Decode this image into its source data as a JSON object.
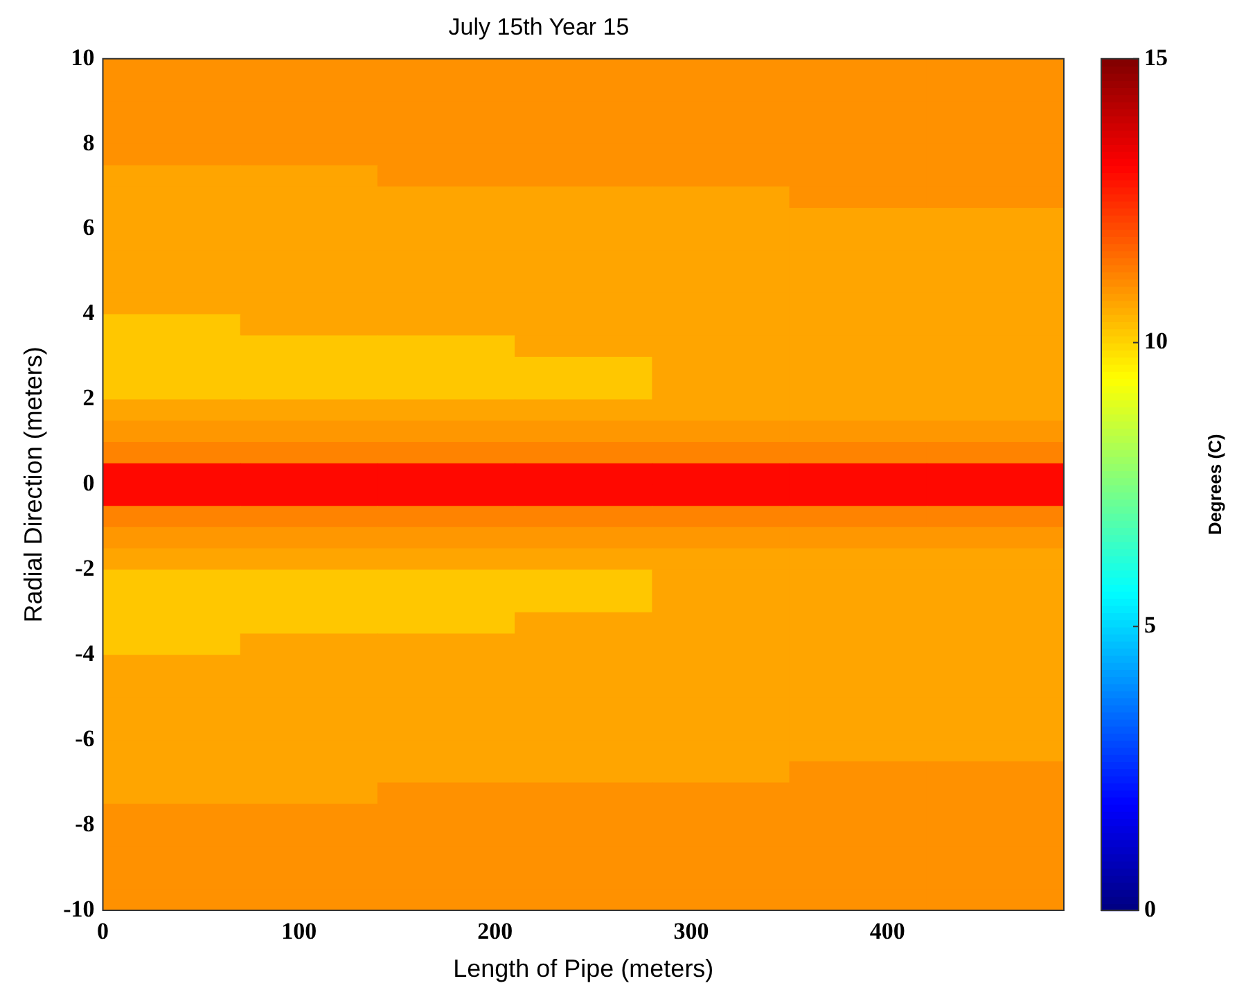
{
  "chart_data": {
    "type": "heatmap",
    "title": "July 15th Year 15",
    "xlabel": "Length of Pipe (meters)",
    "ylabel": "Radial Direction (meters)",
    "clabel": "Degrees (C)",
    "x": [
      35,
      105,
      175,
      245,
      315,
      385,
      455
    ],
    "y": [
      9.75,
      9.25,
      8.75,
      8.25,
      7.75,
      7.25,
      6.75,
      6.25,
      5.75,
      5.25,
      4.75,
      4.25,
      3.75,
      3.25,
      2.75,
      2.25,
      1.75,
      1.25,
      0.75,
      0.25,
      -0.25,
      -0.75,
      -1.25,
      -1.75,
      -2.25,
      -2.75,
      -3.25,
      -3.75,
      -4.25,
      -4.75,
      -5.25,
      -5.75,
      -6.25,
      -6.75,
      -7.25,
      -7.75,
      -8.25,
      -8.75,
      -9.25,
      -9.75
    ],
    "xlim": [
      0,
      490
    ],
    "xticks": [
      0,
      100,
      200,
      300,
      400
    ],
    "ylim": [
      -10,
      10
    ],
    "yticks": [
      -10,
      -8,
      -6,
      -4,
      -2,
      0,
      2,
      4,
      6,
      8,
      10
    ],
    "clim": [
      0,
      15
    ],
    "cticks": [
      0,
      5,
      10,
      15
    ],
    "cells": [
      [
        11,
        11,
        11,
        11,
        11,
        11,
        11
      ],
      [
        11,
        11,
        11,
        11,
        11,
        11,
        11
      ],
      [
        11,
        11,
        11,
        11,
        11,
        11,
        11
      ],
      [
        11,
        11,
        11,
        11,
        11,
        11,
        11
      ],
      [
        11,
        11,
        11,
        11,
        11,
        11,
        11
      ],
      [
        10.7,
        10.7,
        11,
        11,
        11,
        11,
        11
      ],
      [
        10.7,
        10.7,
        10.7,
        10.7,
        10.7,
        11,
        11
      ],
      [
        10.7,
        10.7,
        10.7,
        10.7,
        10.7,
        10.7,
        10.7
      ],
      [
        10.7,
        10.7,
        10.7,
        10.7,
        10.7,
        10.7,
        10.7
      ],
      [
        10.7,
        10.7,
        10.7,
        10.7,
        10.7,
        10.7,
        10.7
      ],
      [
        10.7,
        10.7,
        10.7,
        10.7,
        10.7,
        10.7,
        10.7
      ],
      [
        10.7,
        10.7,
        10.7,
        10.7,
        10.7,
        10.7,
        10.7
      ],
      [
        10.2,
        10.7,
        10.7,
        10.7,
        10.7,
        10.7,
        10.7
      ],
      [
        10.2,
        10.2,
        10.2,
        10.7,
        10.7,
        10.7,
        10.7
      ],
      [
        10.2,
        10.2,
        10.2,
        10.2,
        10.7,
        10.7,
        10.7
      ],
      [
        10.2,
        10.2,
        10.2,
        10.2,
        10.7,
        10.7,
        10.7
      ],
      [
        10.7,
        10.7,
        10.7,
        10.7,
        10.7,
        10.7,
        10.7
      ],
      [
        10.9,
        10.9,
        10.9,
        10.9,
        10.9,
        10.9,
        10.9
      ],
      [
        11.2,
        11.2,
        11.2,
        11.2,
        11.2,
        11.2,
        11.2
      ],
      [
        13,
        13,
        13,
        13,
        13,
        13,
        13
      ],
      [
        13,
        13,
        13,
        13,
        13,
        13,
        13
      ],
      [
        11.2,
        11.2,
        11.2,
        11.2,
        11.2,
        11.2,
        11.2
      ],
      [
        10.9,
        10.9,
        10.9,
        10.9,
        10.9,
        10.9,
        10.9
      ],
      [
        10.7,
        10.7,
        10.7,
        10.7,
        10.7,
        10.7,
        10.7
      ],
      [
        10.2,
        10.2,
        10.2,
        10.2,
        10.7,
        10.7,
        10.7
      ],
      [
        10.2,
        10.2,
        10.2,
        10.2,
        10.7,
        10.7,
        10.7
      ],
      [
        10.2,
        10.2,
        10.2,
        10.7,
        10.7,
        10.7,
        10.7
      ],
      [
        10.2,
        10.7,
        10.7,
        10.7,
        10.7,
        10.7,
        10.7
      ],
      [
        10.7,
        10.7,
        10.7,
        10.7,
        10.7,
        10.7,
        10.7
      ],
      [
        10.7,
        10.7,
        10.7,
        10.7,
        10.7,
        10.7,
        10.7
      ],
      [
        10.7,
        10.7,
        10.7,
        10.7,
        10.7,
        10.7,
        10.7
      ],
      [
        10.7,
        10.7,
        10.7,
        10.7,
        10.7,
        10.7,
        10.7
      ],
      [
        10.7,
        10.7,
        10.7,
        10.7,
        10.7,
        10.7,
        10.7
      ],
      [
        10.7,
        10.7,
        10.7,
        10.7,
        10.7,
        11,
        11
      ],
      [
        10.7,
        10.7,
        11,
        11,
        11,
        11,
        11
      ],
      [
        11,
        11,
        11,
        11,
        11,
        11,
        11
      ],
      [
        11,
        11,
        11,
        11,
        11,
        11,
        11
      ],
      [
        11,
        11,
        11,
        11,
        11,
        11,
        11
      ],
      [
        11,
        11,
        11,
        11,
        11,
        11,
        11
      ],
      [
        11,
        11,
        11,
        11,
        11,
        11,
        11
      ]
    ]
  }
}
